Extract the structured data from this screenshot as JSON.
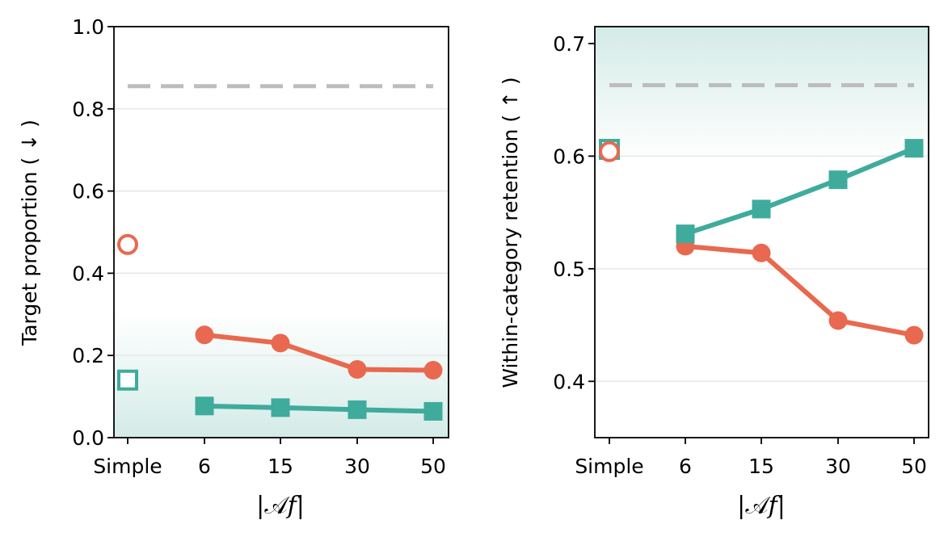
{
  "colors": {
    "orange": "#e8694f",
    "teal": "#3fab9d",
    "reference": "#bdbdbd",
    "shade": "#d3ebe7",
    "grid": "#e6e6e6"
  },
  "chart_data": [
    {
      "type": "line",
      "ylabel": "Target proportion ( ↓ )",
      "xlabel": "|𝒜𝑓|",
      "categories": [
        "Simple",
        "6",
        "15",
        "30",
        "50"
      ],
      "ylim": [
        0.0,
        1.0
      ],
      "yticks": [
        "0.0",
        "0.2",
        "0.4",
        "0.6",
        "0.8",
        "1.0"
      ],
      "grid": "horizontal",
      "shaded_region": "low values (better)",
      "reference_line": 0.855,
      "simple_markers": {
        "circle_hollow": 0.47,
        "square_hollow": 0.14
      },
      "series": [
        {
          "marker": "circle",
          "color": "#e8694f",
          "x": [
            "6",
            "15",
            "30",
            "50"
          ],
          "values": [
            0.25,
            0.23,
            0.166,
            0.164
          ]
        },
        {
          "marker": "square",
          "color": "#3fab9d",
          "x": [
            "6",
            "15",
            "30",
            "50"
          ],
          "values": [
            0.077,
            0.073,
            0.068,
            0.064
          ]
        }
      ]
    },
    {
      "type": "line",
      "ylabel": "Within-category retention ( ↑ )",
      "xlabel": "|𝒜𝑓|",
      "categories": [
        "Simple",
        "6",
        "15",
        "30",
        "50"
      ],
      "ylim": [
        0.35,
        0.715
      ],
      "yticks": [
        "0.4",
        "0.5",
        "0.6",
        "0.7"
      ],
      "grid": "horizontal",
      "shaded_region": "high values (better)",
      "reference_line": 0.663,
      "simple_markers": {
        "circle_hollow": 0.604,
        "square_hollow": 0.606
      },
      "series": [
        {
          "marker": "circle",
          "color": "#e8694f",
          "x": [
            "6",
            "15",
            "30",
            "50"
          ],
          "values": [
            0.52,
            0.514,
            0.454,
            0.441
          ]
        },
        {
          "marker": "square",
          "color": "#3fab9d",
          "x": [
            "6",
            "15",
            "30",
            "50"
          ],
          "values": [
            0.531,
            0.553,
            0.579,
            0.607
          ]
        }
      ]
    }
  ]
}
